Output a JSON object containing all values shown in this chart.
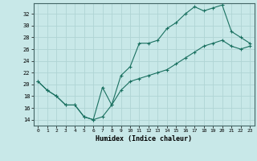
{
  "title": "",
  "xlabel": "Humidex (Indice chaleur)",
  "bg_color": "#c8e8e8",
  "line_color": "#1a7060",
  "grid_color": "#b0d4d4",
  "x_ticks": [
    0,
    1,
    2,
    3,
    4,
    5,
    6,
    7,
    8,
    9,
    10,
    11,
    12,
    13,
    14,
    15,
    16,
    17,
    18,
    19,
    20,
    21,
    22,
    23
  ],
  "y_ticks": [
    14,
    16,
    18,
    20,
    22,
    24,
    26,
    28,
    30,
    32
  ],
  "xlim": [
    -0.5,
    23.5
  ],
  "ylim": [
    13.0,
    33.8
  ],
  "upper_line": {
    "x": [
      0,
      1,
      2,
      3,
      4,
      5,
      6,
      7,
      8,
      9,
      10,
      11,
      12,
      13,
      14,
      15,
      16,
      17,
      18,
      19,
      20,
      21,
      22,
      23
    ],
    "y": [
      20.5,
      19.0,
      18.0,
      16.5,
      16.5,
      14.5,
      14.0,
      19.5,
      16.5,
      21.5,
      23.0,
      27.0,
      27.0,
      27.5,
      29.5,
      30.5,
      32.0,
      33.2,
      32.5,
      33.0,
      33.5,
      29.0,
      28.0,
      27.0
    ]
  },
  "lower_line": {
    "x": [
      0,
      1,
      2,
      3,
      4,
      5,
      6,
      7,
      8,
      9,
      10,
      11,
      12,
      13,
      14,
      15,
      16,
      17,
      18,
      19,
      20,
      21,
      22,
      23
    ],
    "y": [
      20.5,
      19.0,
      18.0,
      16.5,
      16.5,
      14.5,
      14.0,
      14.5,
      16.5,
      19.0,
      20.5,
      21.0,
      21.5,
      22.0,
      22.5,
      23.5,
      24.5,
      25.5,
      26.5,
      27.0,
      27.5,
      26.5,
      26.0,
      26.5
    ]
  }
}
